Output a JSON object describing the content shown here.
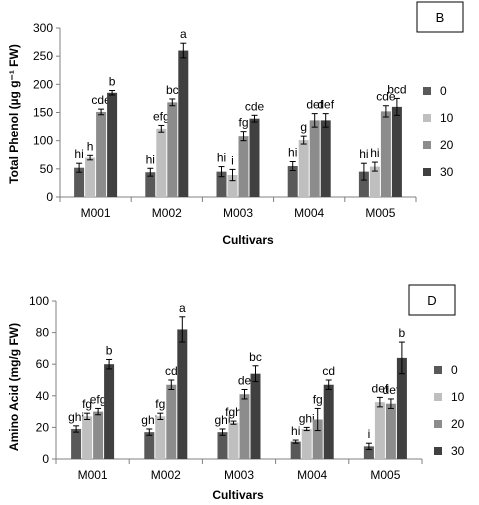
{
  "colors": {
    "0": "#595959",
    "10": "#bfbfbf",
    "20": "#8c8c8c",
    "30": "#404040",
    "axis": "#808080",
    "error": "#000000"
  },
  "chart_data": [
    {
      "type": "bar",
      "panel_label": "B",
      "xlabel": "Cultivars",
      "ylabel": "Total Phenol (µg g⁻¹ FW)",
      "ylim": [
        0,
        300
      ],
      "yticks": [
        0,
        50,
        100,
        150,
        200,
        250,
        300
      ],
      "categories": [
        "M001",
        "M002",
        "M003",
        "M004",
        "M005"
      ],
      "legend_position": "right",
      "series": [
        {
          "name": "0",
          "values": [
            52,
            44,
            45,
            55,
            45
          ],
          "errors": [
            8,
            7,
            9,
            8,
            15
          ],
          "letters": [
            "hi",
            "hi",
            "hi",
            "hi",
            "hi"
          ]
        },
        {
          "name": "10",
          "values": [
            70,
            121,
            39,
            101,
            54
          ],
          "errors": [
            4,
            6,
            10,
            7,
            8
          ],
          "letters": [
            "h",
            "efg",
            "i",
            "g",
            "hi"
          ]
        },
        {
          "name": "20",
          "values": [
            151,
            168,
            108,
            136,
            152
          ],
          "errors": [
            5,
            6,
            8,
            12,
            10
          ],
          "letters": [
            "cde",
            "bc",
            "fg",
            "def",
            "cde"
          ]
        },
        {
          "name": "30",
          "values": [
            185,
            260,
            139,
            136,
            160
          ],
          "errors": [
            4,
            13,
            6,
            12,
            15
          ],
          "letters": [
            "b",
            "a",
            "cde",
            "def",
            "bcd"
          ]
        }
      ]
    },
    {
      "type": "bar",
      "panel_label": "D",
      "xlabel": "Cultivars",
      "ylabel": "Amino Acid (mg/g FW)",
      "ylim": [
        0,
        100
      ],
      "yticks": [
        0,
        20,
        40,
        60,
        80,
        100
      ],
      "categories": [
        "M001",
        "M002",
        "M003",
        "M004",
        "M005"
      ],
      "legend_position": "right",
      "series": [
        {
          "name": "0",
          "values": [
            19,
            17,
            17,
            11,
            8
          ],
          "errors": [
            2,
            2,
            2,
            1,
            2
          ],
          "letters": [
            "ghi",
            "ghi",
            "ghi",
            "hi",
            "i"
          ]
        },
        {
          "name": "10",
          "values": [
            27,
            27,
            23,
            19,
            36
          ],
          "errors": [
            2,
            2,
            1,
            1,
            3
          ],
          "letters": [
            "fg",
            "fg",
            "fgh",
            "ghi",
            "def"
          ]
        },
        {
          "name": "20",
          "values": [
            30,
            47,
            41,
            25,
            35
          ],
          "errors": [
            2,
            3,
            3,
            7,
            3
          ],
          "letters": [
            "efg",
            "cd",
            "de",
            "fg",
            "def"
          ]
        },
        {
          "name": "30",
          "values": [
            60,
            82,
            54,
            47,
            64
          ],
          "errors": [
            3,
            8,
            5,
            3,
            10
          ],
          "letters": [
            "b",
            "a",
            "bc",
            "cd",
            "b"
          ]
        }
      ]
    }
  ]
}
